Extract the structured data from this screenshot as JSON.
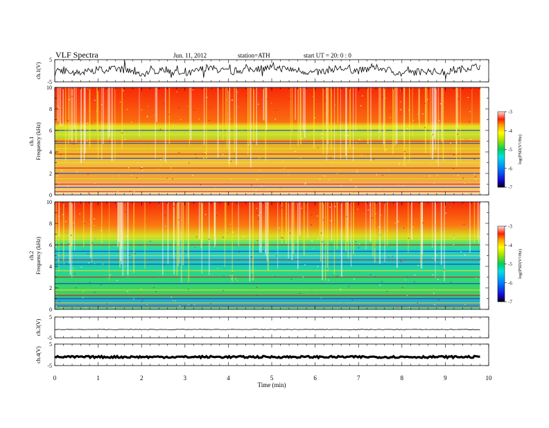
{
  "header": {
    "title": "VLF  Spectra",
    "date": "Jun. 11, 2012",
    "station": "station=ATH",
    "start": "start  UT  =   20: 0  : 0"
  },
  "chart_data": [
    {
      "type": "line",
      "panel": "ch1-waveform",
      "ylabel": "ch.1(V)",
      "ylim": [
        -5,
        5
      ],
      "y_ticks": [
        "5",
        "-5"
      ],
      "x_range_min": [
        0,
        9.8
      ],
      "series": [
        {
          "x": [
            0,
            0.5,
            1,
            1.5,
            2,
            2.5,
            3,
            3.5,
            4,
            4.5,
            5,
            5.5,
            6,
            6.5,
            7,
            7.5,
            8,
            8.5,
            9,
            9.5,
            9.8
          ],
          "values": [
            0.5,
            -1,
            0.3,
            0.8,
            -1.5,
            1,
            -2,
            1.5,
            -0.5,
            0.8,
            1.5,
            0.5,
            -1,
            1.2,
            0,
            1.5,
            -1.5,
            0,
            -0.8,
            1.3,
            2
          ]
        }
      ]
    },
    {
      "type": "heatmap",
      "panel": "ch1-spectrogram",
      "ylabel": "ch.1\nFrequency  (kHz)",
      "ylim": [
        0,
        10
      ],
      "y_ticks": [
        "0",
        "2",
        "4",
        "6",
        "8",
        "10"
      ],
      "x_range_min": [
        0,
        9.8
      ],
      "colorbar": {
        "label": "log(PSD(V²/Hz)",
        "range": [
          -7,
          -3
        ],
        "ticks": [
          "-3",
          "-4",
          "-5",
          "-6",
          "-7"
        ]
      }
    },
    {
      "type": "heatmap",
      "panel": "ch2-spectrogram",
      "ylabel": "ch.2\nFrequency  (kHz)",
      "ylim": [
        0,
        10
      ],
      "y_ticks": [
        "0",
        "2",
        "4",
        "6",
        "8",
        "10"
      ],
      "x_range_min": [
        0,
        9.8
      ],
      "colorbar": {
        "label": "log(PSD(V²/Hz)",
        "range": [
          -7,
          -3
        ],
        "ticks": [
          "-3",
          "-4",
          "-5",
          "-6",
          "-7"
        ]
      }
    },
    {
      "type": "line",
      "panel": "ch3-waveform",
      "ylabel": "ch.3(V)",
      "ylim": [
        -5,
        5
      ],
      "y_ticks": [
        "5",
        "-5"
      ],
      "x_range_min": [
        0,
        9.8
      ],
      "series": [
        {
          "x": [
            0,
            9.8
          ],
          "values": [
            -1,
            -1
          ]
        }
      ]
    },
    {
      "type": "line",
      "panel": "ch4-waveform",
      "ylabel": "ch.4(V)",
      "ylim": [
        -5,
        5
      ],
      "y_ticks": [
        "5",
        "-5"
      ],
      "x_range_min": [
        0,
        9.8
      ],
      "series": [
        {
          "x": [
            0,
            9.8
          ],
          "values": [
            -1,
            -1
          ]
        }
      ]
    }
  ],
  "x_axis": {
    "label": "Time  (min)",
    "range": [
      0,
      10
    ],
    "ticks": [
      "0",
      "1",
      "2",
      "3",
      "4",
      "5",
      "6",
      "7",
      "8",
      "9",
      "10"
    ]
  }
}
